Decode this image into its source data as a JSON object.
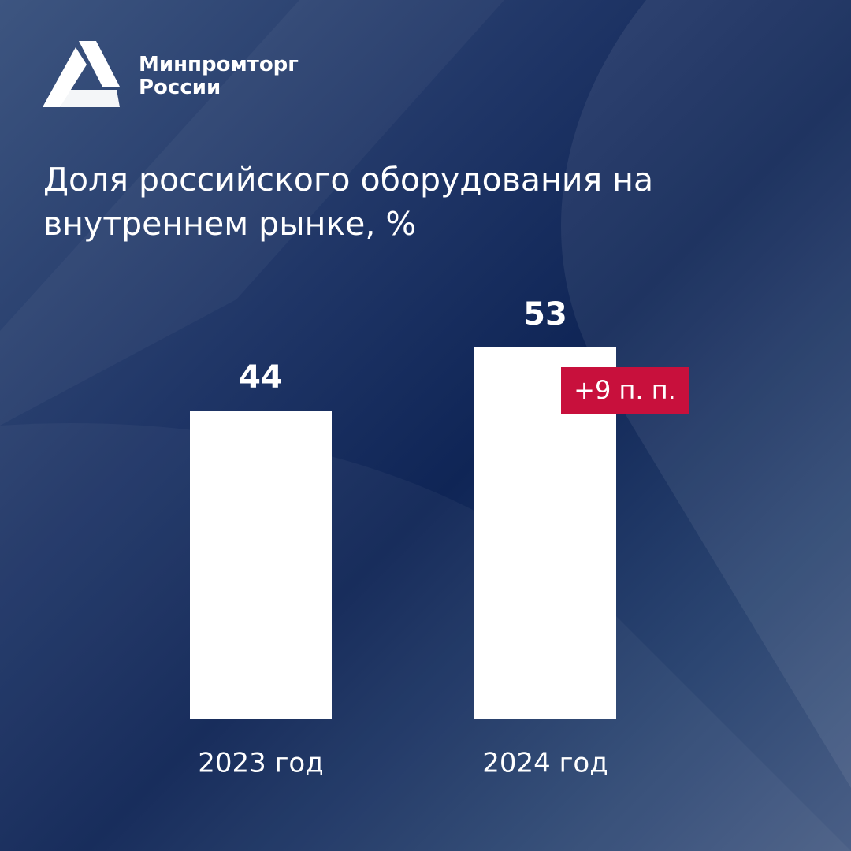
{
  "logo": {
    "lines": [
      "Минпромторг",
      "России"
    ]
  },
  "chart_data": {
    "type": "bar",
    "title": "Доля российского оборудования на внутреннем рынке, %",
    "categories": [
      "2023 год",
      "2024 год"
    ],
    "values": [
      44,
      53
    ],
    "color": "#ffffff",
    "annotation": "+9 п. п.",
    "annotation_color": "#c8103c"
  }
}
